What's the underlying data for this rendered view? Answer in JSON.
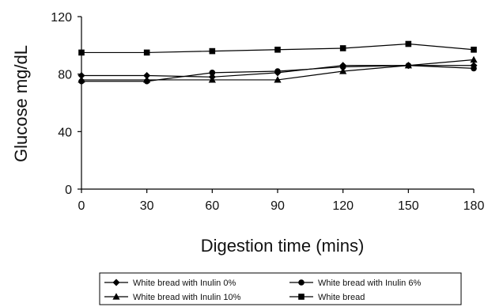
{
  "chart_data": {
    "type": "line",
    "xlabel": "Digestion time (mins)",
    "ylabel": "Glucose mg/dL",
    "x": [
      0,
      30,
      60,
      90,
      120,
      150,
      180
    ],
    "xlim": [
      0,
      180
    ],
    "ylim": [
      0,
      120
    ],
    "x_ticks": [
      0,
      30,
      60,
      90,
      120,
      150,
      180
    ],
    "y_ticks": [
      0,
      40,
      80,
      120
    ],
    "grid": false,
    "legend_position": "bottom",
    "line_color": "#000000",
    "series": [
      {
        "name": "White bread with Inulin 0%",
        "marker": "diamond",
        "values": [
          79,
          79,
          78,
          81,
          86,
          86,
          86
        ]
      },
      {
        "name": "White bread with Inulin 6%",
        "marker": "circle",
        "values": [
          75,
          75,
          81,
          82,
          85,
          86,
          84
        ]
      },
      {
        "name": "White bread with Inulin 10%",
        "marker": "triangle",
        "values": [
          76,
          76,
          76,
          76,
          82,
          86,
          90
        ]
      },
      {
        "name": "White bread",
        "marker": "square",
        "values": [
          95,
          95,
          96,
          97,
          98,
          101,
          97
        ]
      }
    ]
  }
}
